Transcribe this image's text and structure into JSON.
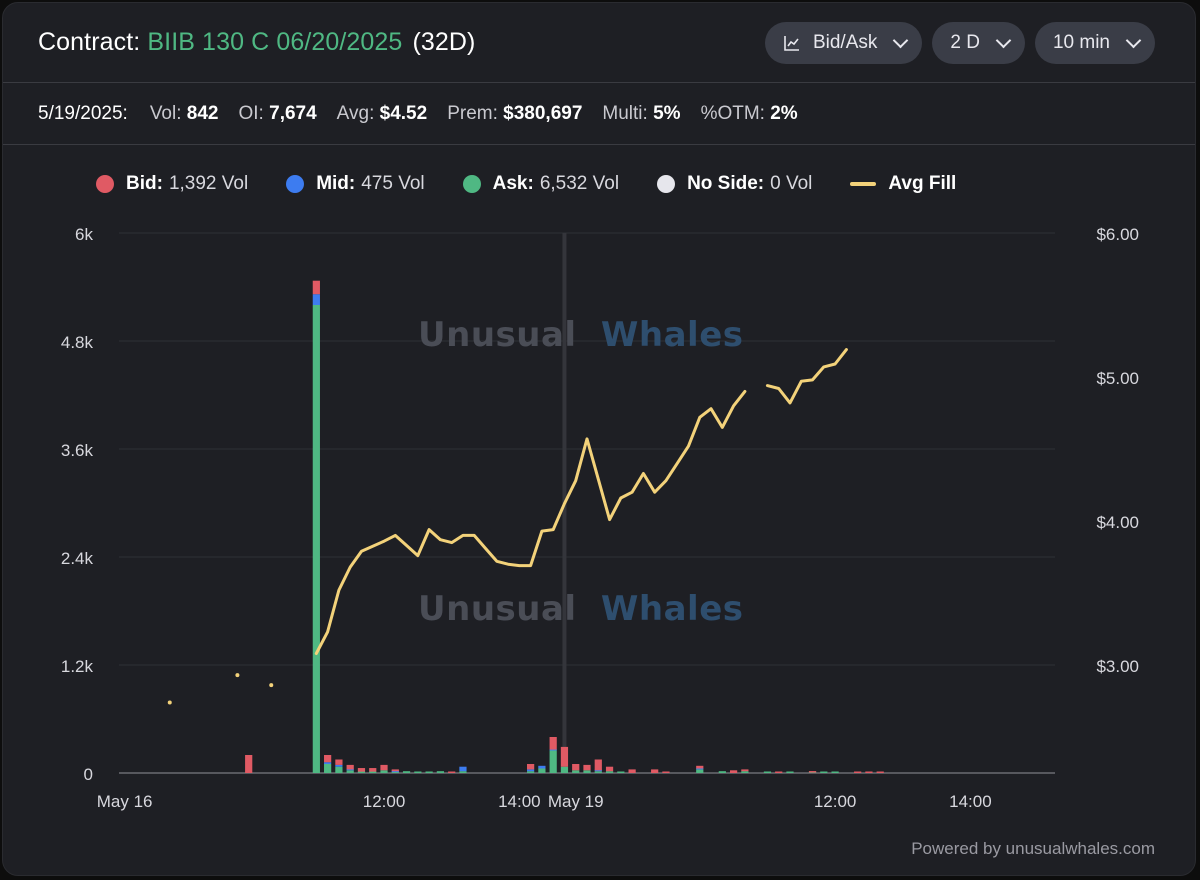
{
  "header": {
    "title_prefix": "Contract: ",
    "contract": "BIIB 130 C 06/20/2025",
    "dte": "(32D)",
    "controls": [
      {
        "label": "Bid/Ask",
        "icon": "line-chart-icon"
      },
      {
        "label": "2 D"
      },
      {
        "label": "10 min"
      }
    ]
  },
  "stats": {
    "date": "5/19/2025:",
    "vol_label": "Vol:",
    "vol": "842",
    "oi_label": "OI:",
    "oi": "7,674",
    "avg_label": "Avg:",
    "avg": "$4.52",
    "prem_label": "Prem:",
    "prem": "$380,697",
    "multi_label": "Multi:",
    "multi": "5%",
    "otm_label": "%OTM:",
    "otm": "2%"
  },
  "legend": [
    {
      "name": "Bid:",
      "value": "1,392 Vol",
      "color": "#e05a64"
    },
    {
      "name": "Mid:",
      "value": "475 Vol",
      "color": "#3d7cf0"
    },
    {
      "name": "Ask:",
      "value": "6,532 Vol",
      "color": "#4fb883"
    },
    {
      "name": "No Side:",
      "value": "0 Vol",
      "color": "#e6e6ec"
    },
    {
      "name": "Avg Fill",
      "value": "",
      "color": "#f3d27a"
    }
  ],
  "watermark": "Unusual Whales",
  "watermark_parts": [
    "Unusual",
    "Whales"
  ],
  "powered_by": "Powered by unusualwhales.com",
  "chart_data": {
    "type": "bar",
    "title": "",
    "y_left": {
      "min": 0,
      "max": 6000,
      "ticks": [
        "0",
        "1.2k",
        "2.4k",
        "3.6k",
        "4.8k",
        "6k"
      ],
      "tick_values": [
        0,
        1200,
        2400,
        3600,
        4800,
        6000
      ]
    },
    "y_right": {
      "min": 2.25,
      "max": 6.0,
      "ticks": [
        "$3.00",
        "$4.00",
        "$5.00",
        "$6.00"
      ],
      "tick_values": [
        3.0,
        4.0,
        5.0,
        6.0
      ]
    },
    "x_labels": [
      "May 16",
      "12:00",
      "14:00",
      "May 19",
      "12:00",
      "14:00"
    ],
    "day_separator_index": 39,
    "slot_count": 83,
    "x_label_slots": [
      0,
      23,
      35,
      40,
      63,
      75
    ],
    "grid": true,
    "series": [
      {
        "name": "Bid",
        "color": "#e05a64",
        "values": [
          [
            11,
            200
          ],
          [
            17,
            150
          ],
          [
            18,
            80
          ],
          [
            19,
            60
          ],
          [
            20,
            50
          ],
          [
            21,
            40
          ],
          [
            22,
            40
          ],
          [
            23,
            60
          ],
          [
            24,
            20
          ],
          [
            29,
            10
          ],
          [
            36,
            60
          ],
          [
            38,
            140
          ],
          [
            39,
            220
          ],
          [
            40,
            70
          ],
          [
            41,
            60
          ],
          [
            42,
            120
          ],
          [
            43,
            50
          ],
          [
            45,
            40
          ],
          [
            47,
            40
          ],
          [
            48,
            10
          ],
          [
            51,
            30
          ],
          [
            54,
            30
          ],
          [
            55,
            20
          ],
          [
            58,
            10
          ],
          [
            61,
            10
          ],
          [
            65,
            5
          ],
          [
            66,
            5
          ],
          [
            67,
            5
          ]
        ]
      },
      {
        "name": "Mid",
        "color": "#3d7cf0",
        "values": [
          [
            17,
            120
          ],
          [
            18,
            20
          ],
          [
            19,
            20
          ],
          [
            20,
            10
          ],
          [
            24,
            10
          ],
          [
            30,
            50
          ],
          [
            36,
            20
          ],
          [
            37,
            30
          ],
          [
            38,
            10
          ],
          [
            42,
            10
          ],
          [
            51,
            10
          ]
        ]
      },
      {
        "name": "Ask",
        "color": "#4fb883",
        "values": [
          [
            17,
            5200
          ],
          [
            18,
            100
          ],
          [
            19,
            70
          ],
          [
            20,
            30
          ],
          [
            21,
            15
          ],
          [
            22,
            15
          ],
          [
            23,
            30
          ],
          [
            24,
            10
          ],
          [
            25,
            20
          ],
          [
            26,
            10
          ],
          [
            27,
            10
          ],
          [
            28,
            20
          ],
          [
            30,
            20
          ],
          [
            36,
            20
          ],
          [
            37,
            50
          ],
          [
            38,
            250
          ],
          [
            39,
            70
          ],
          [
            40,
            30
          ],
          [
            41,
            30
          ],
          [
            42,
            20
          ],
          [
            43,
            20
          ],
          [
            44,
            10
          ],
          [
            51,
            40
          ],
          [
            53,
            20
          ],
          [
            55,
            20
          ],
          [
            57,
            10
          ],
          [
            59,
            10
          ],
          [
            61,
            5
          ],
          [
            62,
            10
          ],
          [
            63,
            5
          ]
        ]
      }
    ],
    "avg_fill": {
      "name": "Avg Fill",
      "color": "#f3d27a",
      "points": [
        [
          4,
          2.74
        ],
        [
          10,
          2.93
        ],
        [
          13,
          2.86
        ],
        [
          17,
          3.08
        ],
        [
          18,
          3.23
        ],
        [
          19,
          3.52
        ],
        [
          20,
          3.68
        ],
        [
          21,
          3.79
        ],
        [
          23,
          3.86
        ],
        [
          24,
          3.9
        ],
        [
          25,
          3.83
        ],
        [
          26,
          3.76
        ],
        [
          27,
          3.94
        ],
        [
          28,
          3.87
        ],
        [
          29,
          3.85
        ],
        [
          30,
          3.9
        ],
        [
          31,
          3.9
        ],
        [
          32,
          3.81
        ],
        [
          33,
          3.72
        ],
        [
          34,
          3.7
        ],
        [
          35,
          3.69
        ],
        [
          36,
          3.69
        ],
        [
          37,
          3.93
        ],
        [
          38,
          3.94
        ],
        [
          39,
          4.12
        ],
        [
          40,
          4.28
        ],
        [
          41,
          4.57
        ],
        [
          42,
          4.29
        ],
        [
          43,
          4.01
        ],
        [
          44,
          4.16
        ],
        [
          45,
          4.2
        ],
        [
          46,
          4.33
        ],
        [
          47,
          4.2
        ],
        [
          48,
          4.28
        ],
        [
          49,
          4.4
        ],
        [
          50,
          4.52
        ],
        [
          51,
          4.72
        ],
        [
          52,
          4.78
        ],
        [
          53,
          4.65
        ],
        [
          54,
          4.8
        ],
        [
          55,
          4.9
        ],
        [
          null,
          null
        ],
        [
          57,
          4.94
        ],
        [
          58,
          4.92
        ],
        [
          59,
          4.82
        ],
        [
          60,
          4.97
        ],
        [
          61,
          4.98
        ],
        [
          62,
          5.07
        ],
        [
          63,
          5.09
        ],
        [
          64,
          5.19
        ]
      ],
      "isolated_points": [
        [
          4,
          2.74
        ],
        [
          10,
          2.93
        ],
        [
          13,
          2.86
        ]
      ]
    }
  }
}
